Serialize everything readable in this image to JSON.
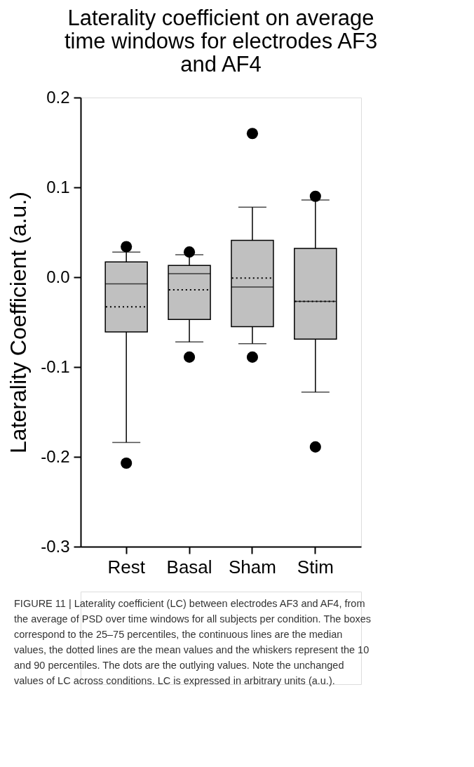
{
  "chart_data": {
    "type": "box",
    "title": "Laterality coefficient on average time windows for electrodes AF3 and AF4",
    "ylabel": "Laterality Coefficient (a.u.)",
    "categories": [
      "Rest",
      "Basal",
      "Sham",
      "Stim"
    ],
    "series": [
      {
        "color": "#c0c0c0",
        "boxes": [
          {
            "low": -0.184,
            "q1": -0.061,
            "median": -0.0075,
            "q3": 0.017,
            "high": 0.028,
            "mean": -0.033,
            "outliers": [
              0.034,
              -0.207
            ]
          },
          {
            "low": -0.072,
            "q1": -0.047,
            "median": 0.004,
            "q3": 0.013,
            "high": 0.025,
            "mean": -0.014,
            "outliers": [
              0.028,
              -0.089
            ]
          },
          {
            "low": -0.074,
            "q1": -0.055,
            "median": -0.011,
            "q3": 0.041,
            "high": 0.078,
            "mean": -0.001,
            "outliers": [
              0.16,
              -0.089
            ]
          },
          {
            "low": -0.128,
            "q1": -0.069,
            "median": -0.027,
            "q3": 0.032,
            "high": 0.086,
            "mean": -0.027,
            "outliers": [
              0.09,
              -0.189
            ]
          }
        ]
      }
    ],
    "ylim": [
      -0.3,
      0.2
    ],
    "yticks": [
      0.2,
      0.1,
      {
        "value": 0,
        "label": "0.0"
      },
      -0.1,
      -0.2,
      -0.3
    ],
    "grid": false,
    "line_style": "dotted",
    "annotations": [
      "FIGURE 11 | Laterality coefficient (LC) between electrodes AF3 and AF4, from the average of PSD over time windows for all subjects per condition. The boxes correspond to the 25–75 percentiles, the continuous lines are the median values, the dotted lines are the mean values and the whiskers represent the 10 and 90 percentiles. The dots are the outlying values. Note the unchanged values of LC across conditions. LC is expressed in arbitrary units (a.u.)."
    ]
  }
}
